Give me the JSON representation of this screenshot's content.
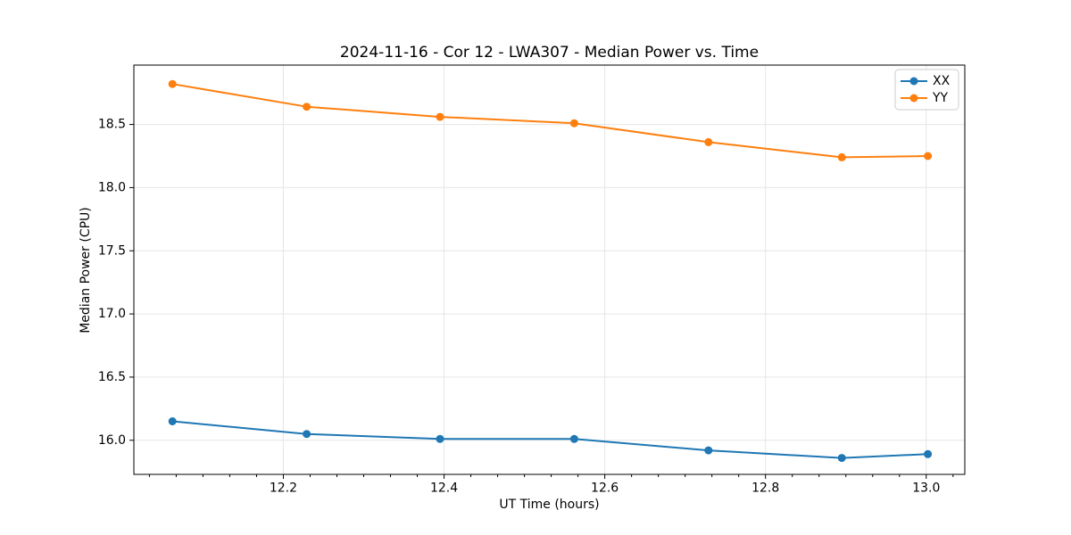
{
  "chart_data": {
    "type": "line",
    "title": "2024-11-16 - Cor 12 - LWA307 - Median Power vs. Time",
    "xlabel": "UT Time (hours)",
    "ylabel": "Median Power (CPU)",
    "x": [
      12.062,
      12.229,
      12.395,
      12.562,
      12.729,
      12.895,
      13.002
    ],
    "series": [
      {
        "name": "XX",
        "color": "#1f77b4",
        "values": [
          16.15,
          16.05,
          16.01,
          16.01,
          15.92,
          15.86,
          15.89
        ]
      },
      {
        "name": "YY",
        "color": "#ff7f0e",
        "values": [
          18.82,
          18.64,
          18.56,
          18.51,
          18.36,
          18.24,
          18.25
        ]
      }
    ],
    "xlim": [
      12.014,
      13.048
    ],
    "ylim": [
      15.73,
      18.97
    ],
    "xticks": [
      12.2,
      12.4,
      12.6,
      12.8,
      13.0
    ],
    "xtick_labels": [
      "12.2",
      "12.4",
      "12.6",
      "12.8",
      "13.0"
    ],
    "yticks": [
      16.0,
      16.5,
      17.0,
      17.5,
      18.0,
      18.5
    ],
    "ytick_labels": [
      "16.0",
      "16.5",
      "17.0",
      "17.5",
      "18.0",
      "18.5"
    ],
    "x_minor_step": 0.033333333,
    "grid": true,
    "legend": {
      "position": "upper right",
      "labels": [
        "XX",
        "YY"
      ]
    },
    "colors": {
      "grid": "#e6e6e6",
      "spine": "#000000",
      "text": "#000000",
      "legend_border": "#cccccc",
      "legend_fill": "#ffffff"
    }
  }
}
